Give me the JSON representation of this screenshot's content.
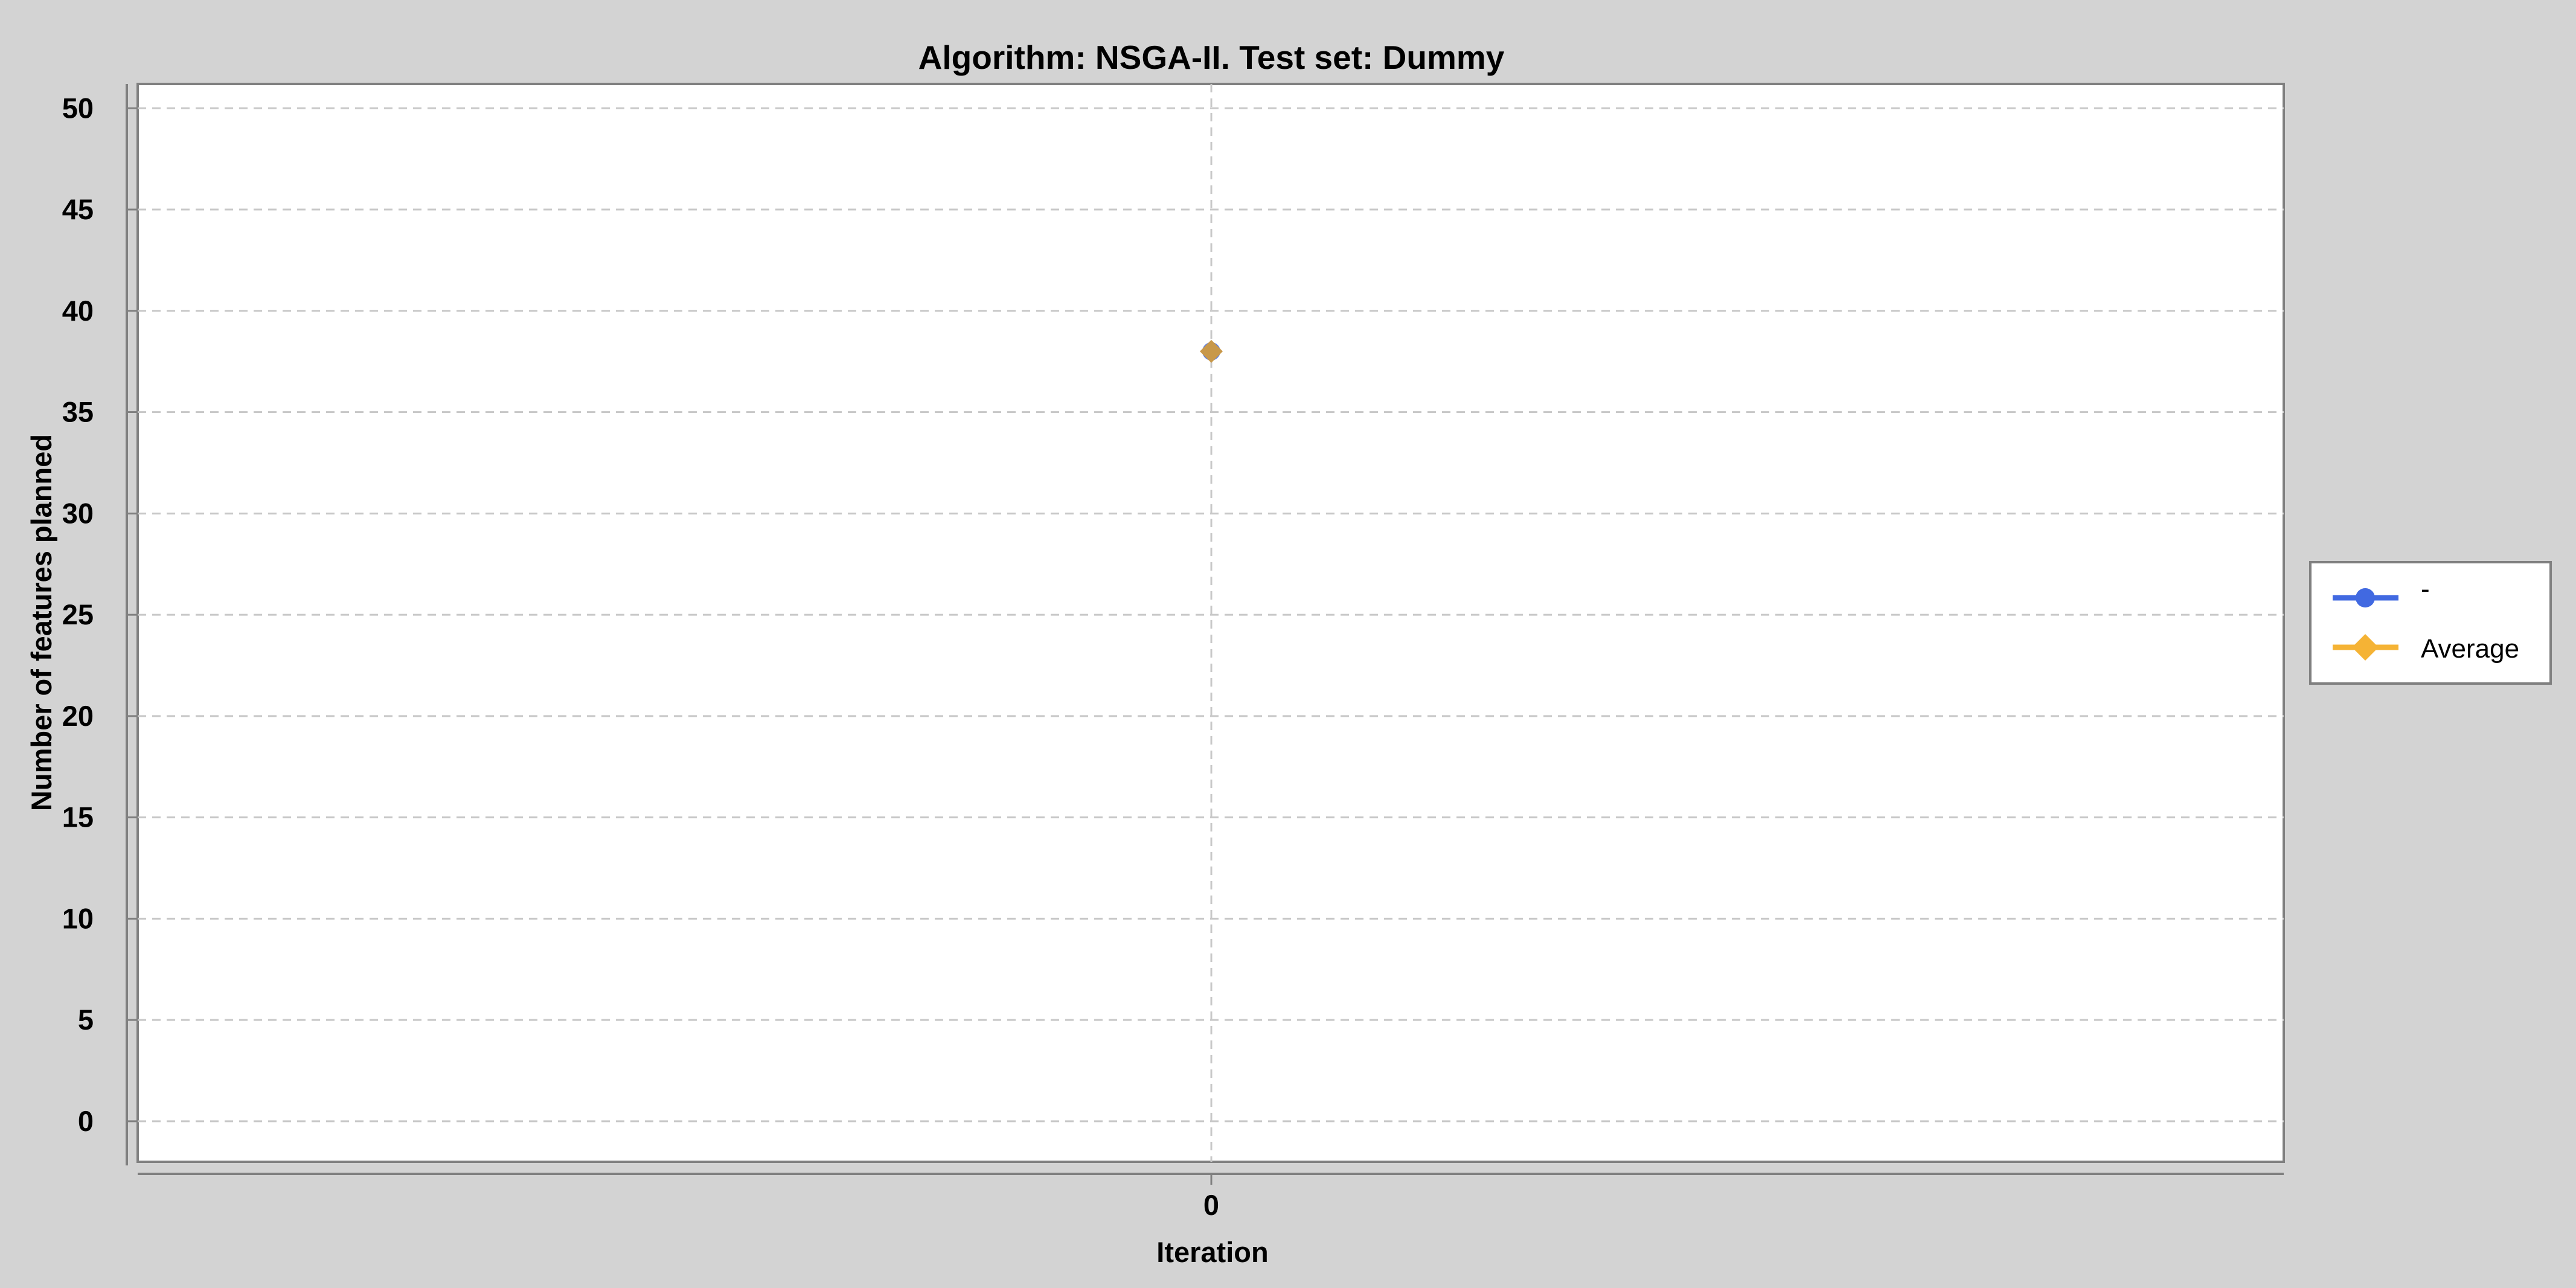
{
  "chart_data": {
    "type": "line",
    "title": "Algorithm: NSGA-II. Test set: Dummy",
    "xlabel": "Iteration",
    "ylabel": "Number of features planned",
    "x": [
      0
    ],
    "x_tick_labels": [
      "0"
    ],
    "y_ticks": [
      0,
      5,
      10,
      15,
      20,
      25,
      30,
      35,
      40,
      45,
      50
    ],
    "ylim": [
      -2,
      51.2
    ],
    "grid": true,
    "legend_position": "right",
    "series": [
      {
        "name": "-",
        "values": [
          38
        ],
        "color": "#4169e1",
        "marker": "circle"
      },
      {
        "name": "Average",
        "values": [
          38
        ],
        "color": "#f5b335",
        "marker": "diamond"
      }
    ]
  },
  "colors": {
    "background": "#d3d3d3",
    "plot_background": "#ffffff",
    "grid": "#c8c8c8",
    "axis": "#808080",
    "overlap_point": "#c8984a"
  }
}
